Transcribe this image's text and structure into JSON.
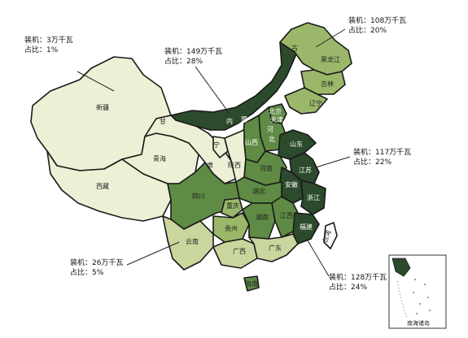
{
  "colors": {
    "level_1": "#eef0d6",
    "level_2": "#c9d79e",
    "level_3": "#9bb86a",
    "level_4": "#5f8b45",
    "level_5": "#2c4a2c",
    "outline": "#1a1a1a",
    "taiwan": "#ffffff"
  },
  "callouts": [
    {
      "id": "xinjiang",
      "capacity": "装机：3万千瓦",
      "share": "占比：1%"
    },
    {
      "id": "northwest",
      "capacity": "装机：149万千瓦",
      "share": "占比：28%"
    },
    {
      "id": "northeast",
      "capacity": "装机：108万千瓦",
      "share": "占比：20%"
    },
    {
      "id": "east",
      "capacity": "装机：117万千瓦",
      "share": "占比：22%"
    },
    {
      "id": "southwest",
      "capacity": "装机：26万千瓦",
      "share": "占比：5%"
    },
    {
      "id": "southeast",
      "capacity": "装机：128万千瓦",
      "share": "占比：24%"
    }
  ],
  "provinces": {
    "xinjiang": "新疆",
    "xizang": "西藏",
    "qinghai": "青海",
    "gansu": "甘",
    "ningxia": "宁",
    "su": "肃",
    "neimenggu_1": "蒙",
    "neimenggu_2": "内",
    "neimenggu_3": "古",
    "heilongjiang": "黑龙江",
    "jilin": "吉林",
    "liaoning": "辽宁",
    "beijing": "北京",
    "tianjin": "天津",
    "hebei_1": "河",
    "hebei_2": "北",
    "shanxi": "山西",
    "shandong": "山东",
    "shaanxi": "陕西",
    "henan": "河南",
    "jiangsu": "江苏",
    "anhui": "安徽",
    "zhejiang": "浙江",
    "hubei": "湖北",
    "sichuan": "四川",
    "chongqing": "重庆",
    "guizhou": "贵州",
    "hunan": "湖南",
    "jiangxi": "江西",
    "fujian": "福建",
    "taiwan": "台湾",
    "yunnan": "云南",
    "guangxi": "广西",
    "guangdong": "广东",
    "hainan": "海南"
  },
  "inset_caption": "南海诸岛"
}
